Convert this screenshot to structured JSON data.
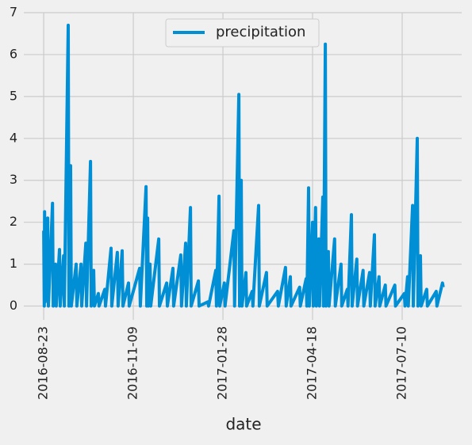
{
  "chart_data": {
    "type": "line",
    "xlabel": "date",
    "x": [
      0,
      3,
      5,
      8,
      22,
      26,
      49,
      53,
      66,
      70,
      88,
      92,
      111,
      115,
      137,
      141,
      150,
      154,
      181,
      185,
      208,
      212,
      235,
      239,
      261,
      265,
      279,
      283,
      305,
      309,
      341,
      345,
      376,
      380,
      411,
      415,
      438,
      442,
      473,
      477,
      535,
      539,
      571,
      575,
      580,
      584,
      593,
      597,
      642,
      646,
      686,
      690,
      721,
      725,
      765,
      769,
      792,
      796,
      819,
      823,
      863,
      867,
      916,
      920,
      960,
      964,
      978,
      982,
      1008,
      1012,
      1061,
      1065,
      1089,
      1093,
      1102,
      1106,
      1128,
      1132,
      1163,
      1167,
      1199,
      1203,
      1243,
      1247,
      1305,
      1309,
      1349,
      1353,
      1376,
      1380,
      1428,
      1432,
      1464,
      1468,
      1478,
      1482,
      1500,
      1504,
      1517,
      1521,
      1535,
      1539,
      1557,
      1561,
      1571,
      1575,
      1588,
      1592,
      1623,
      1627,
      1659,
      1663,
      1694,
      1698,
      1717,
      1721,
      1747,
      1751,
      1782,
      1786,
      1818,
      1822,
      1845,
      1849,
      1871,
      1875,
      1906,
      1910,
      1959,
      1963,
      2012,
      2016,
      2030,
      2034,
      2058,
      2062,
      2084,
      2088,
      2102,
      2106,
      2137,
      2141,
      2190,
      2194,
      2225,
      2229
    ],
    "series": [
      {
        "name": "precipitation",
        "color": "#008fd5",
        "values": [
          1.8,
          0,
          2.25,
          0.1,
          2.1,
          0,
          2.45,
          0,
          1.0,
          0,
          1.35,
          0,
          1.2,
          0,
          6.7,
          0,
          3.35,
          0,
          1.0,
          0,
          1.0,
          0,
          1.5,
          0,
          3.45,
          0,
          0.85,
          0,
          0.3,
          0,
          0.4,
          0,
          1.38,
          0,
          1.28,
          0,
          1.32,
          0,
          0.55,
          0,
          0.9,
          0,
          2.85,
          0,
          2.1,
          0,
          1.0,
          0,
          1.6,
          0,
          0.55,
          0,
          0.9,
          0,
          1.22,
          0,
          1.5,
          0,
          2.35,
          0,
          0.6,
          0,
          0.1,
          0,
          0.85,
          0,
          2.62,
          0,
          0.55,
          0,
          1.8,
          0,
          5.05,
          0,
          3.0,
          0,
          0.8,
          0,
          0.35,
          0,
          2.4,
          0,
          0.8,
          0,
          0.35,
          0,
          0.92,
          0,
          0.7,
          0,
          0.45,
          0,
          0.65,
          0,
          2.82,
          0,
          2.0,
          0,
          2.35,
          0,
          1.6,
          0,
          2.6,
          0,
          6.25,
          0,
          1.3,
          0,
          1.6,
          0,
          1.0,
          0,
          0.4,
          0,
          2.18,
          0,
          1.12,
          0,
          0.85,
          0,
          0.8,
          0,
          1.7,
          0,
          0.7,
          0,
          0.5,
          0,
          0.5,
          0,
          0.3,
          0,
          0.7,
          0,
          2.4,
          0,
          4.0,
          0,
          1.2,
          0,
          0.4,
          0,
          0.35,
          0,
          0.55,
          0.45
        ]
      }
    ],
    "xlim": [
      -111,
      2332
    ],
    "xticks": [
      {
        "value": 0,
        "label": "2016-08-23"
      },
      {
        "value": 500,
        "label": "2016-11-09"
      },
      {
        "value": 1000,
        "label": "2017-01-28"
      },
      {
        "value": 1500,
        "label": "2017-04-18"
      },
      {
        "value": 2000,
        "label": "2017-07-10"
      }
    ],
    "ylim": [
      -0.33,
      7
    ],
    "yticks": [
      0,
      1,
      2,
      3,
      4,
      5,
      6,
      7
    ],
    "grid": true,
    "legend": "upper center"
  }
}
